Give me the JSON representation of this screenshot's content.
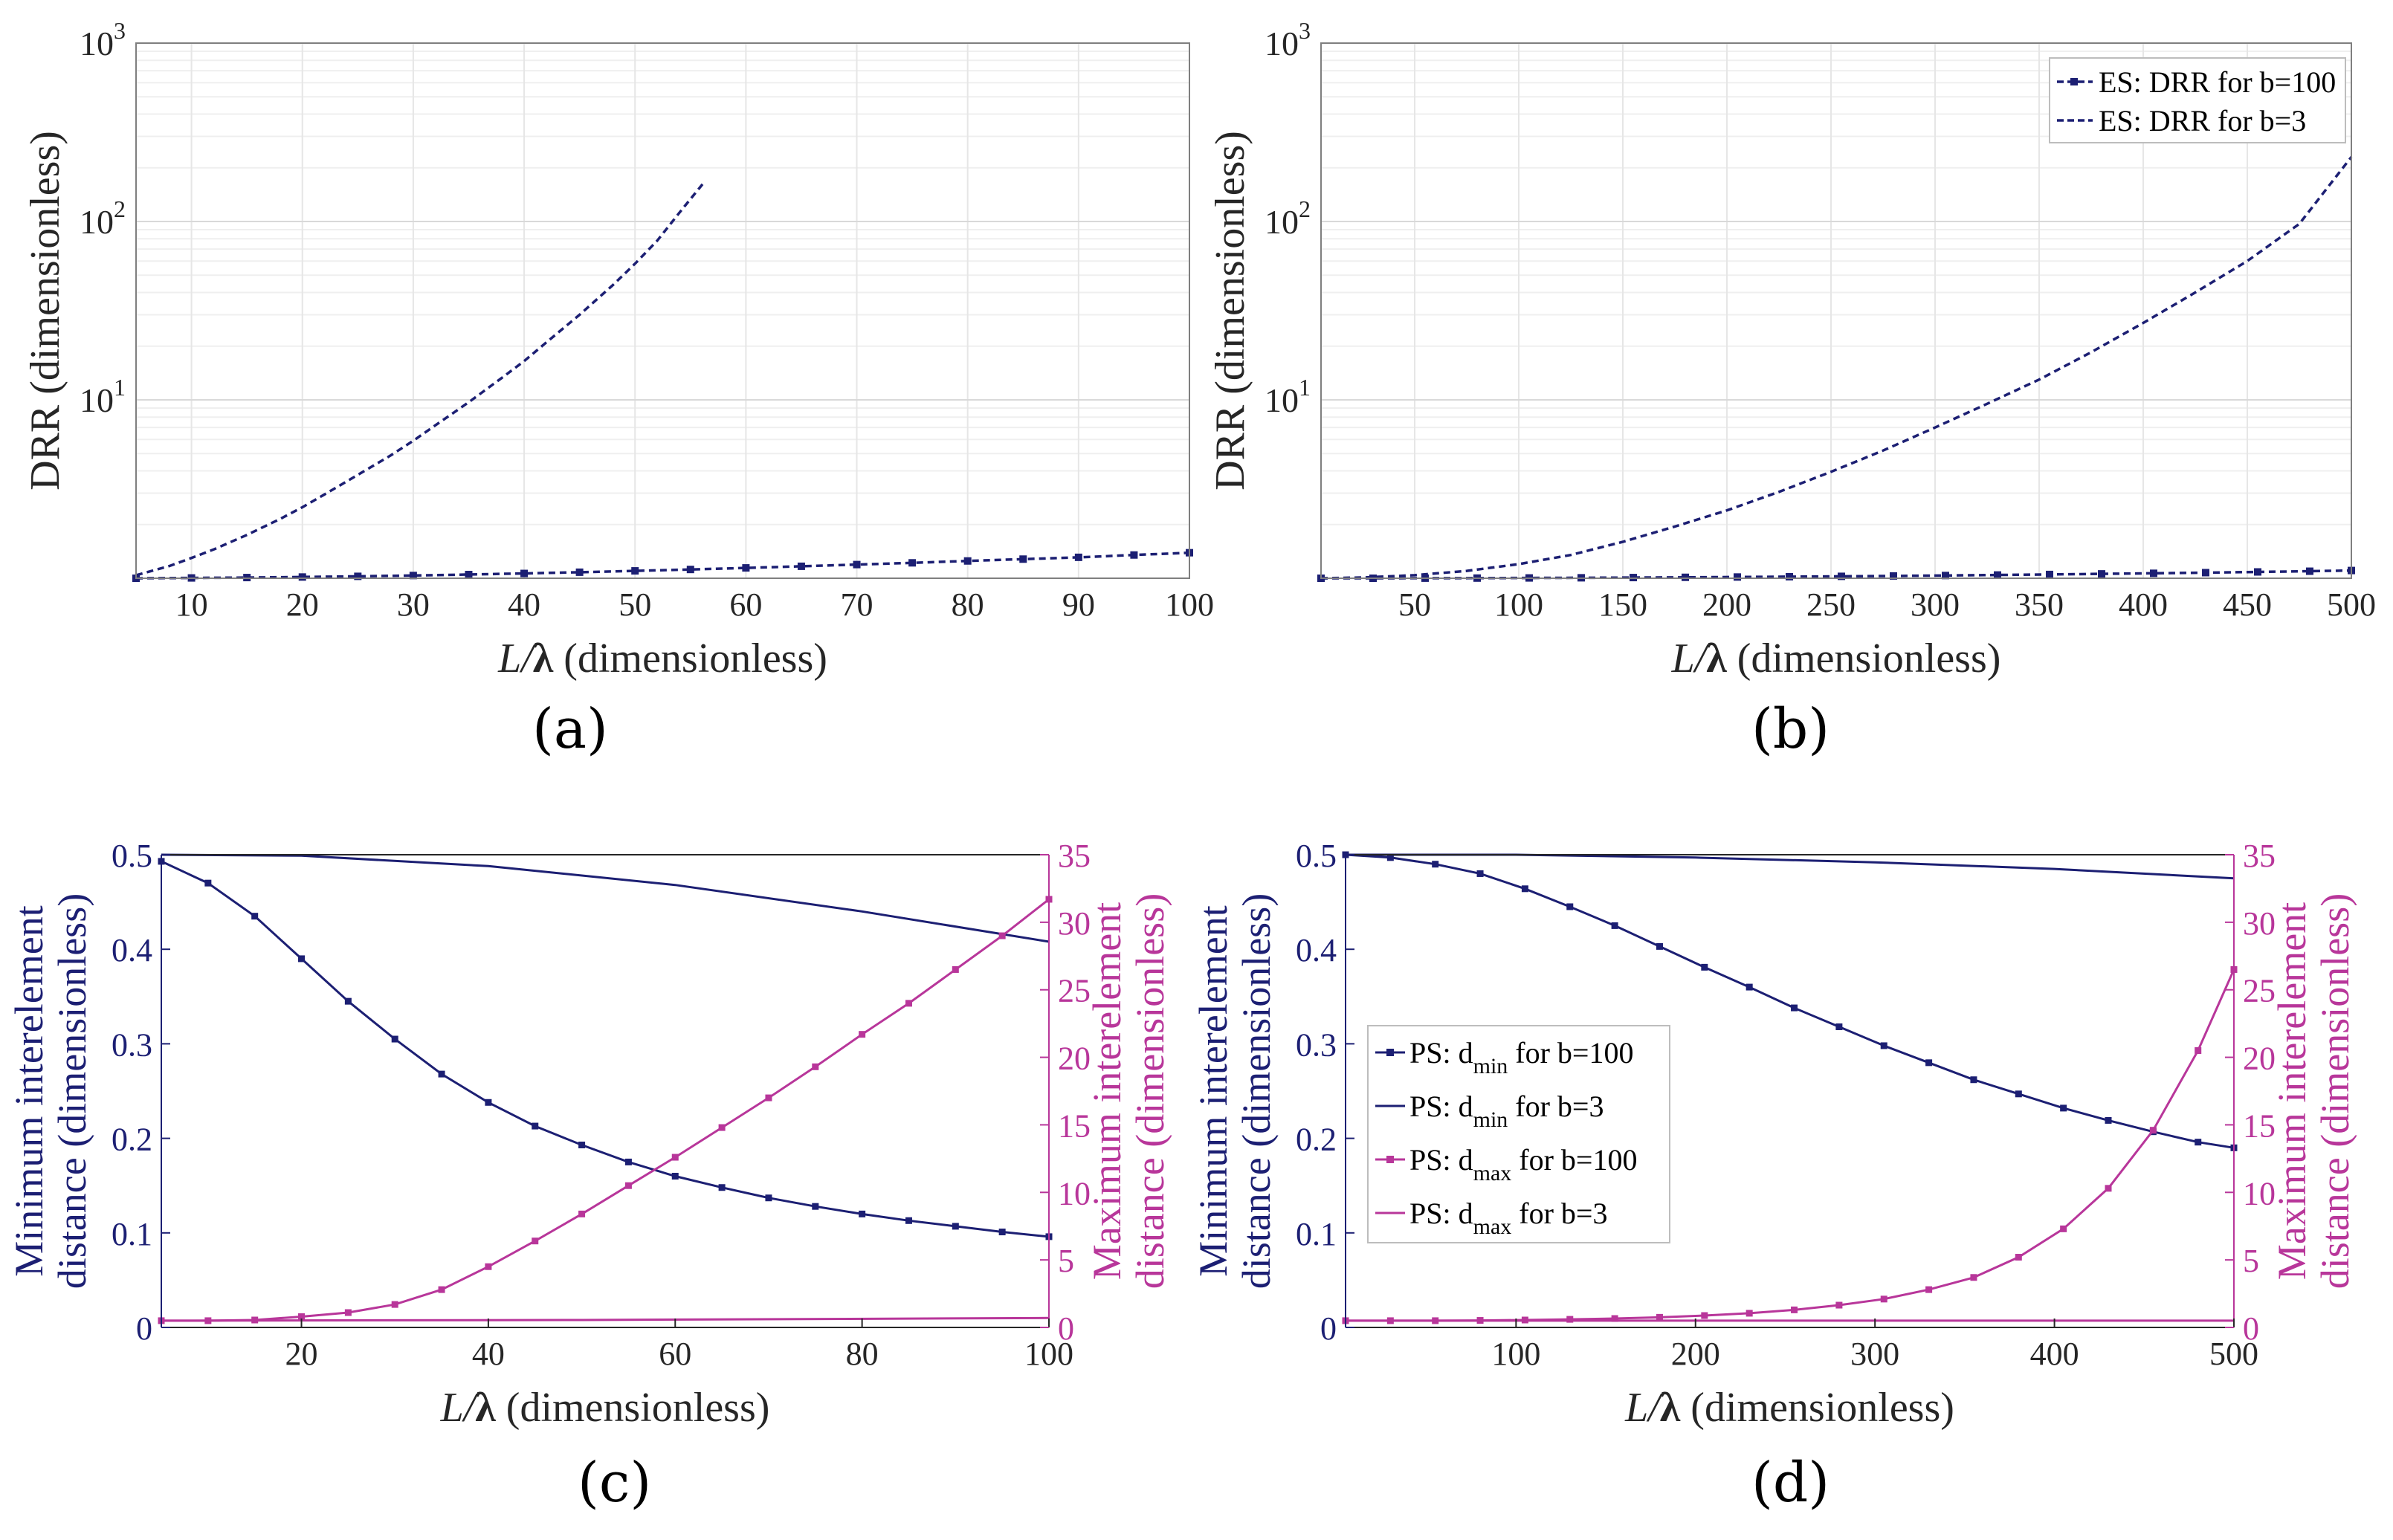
{
  "colors": {
    "navy": "#1c1f73",
    "magenta": "#b8369a",
    "grid": "#e6e6e6",
    "axis": "#7f7f7f",
    "text": "#262626"
  },
  "panel_labels": {
    "a": "(a)",
    "b": "(b)",
    "c": "(c)",
    "d": "(d)"
  },
  "chart_data": [
    {
      "id": "a",
      "type": "line",
      "yscale": "log",
      "xlabel_main": "L/λ",
      "xlabel_suffix": " (dimensionless)",
      "ylabel": "DRR (dimensionless)",
      "xlim": [
        5,
        100
      ],
      "ylim": [
        1,
        1000
      ],
      "xticks": [
        10,
        20,
        30,
        40,
        50,
        60,
        70,
        80,
        90,
        100
      ],
      "yticks": [
        {
          "v": 10,
          "base": "10",
          "exp": "1"
        },
        {
          "v": 100,
          "base": "10",
          "exp": "2"
        },
        {
          "v": 1000,
          "base": "10",
          "exp": "3"
        }
      ],
      "legend": null,
      "series": [
        {
          "name": "ES: DRR for b=100",
          "style": "dashed",
          "markers": true,
          "x": [
            5,
            10,
            15,
            20,
            25,
            30,
            35,
            40,
            45,
            50,
            55,
            60,
            65,
            70,
            75,
            80,
            85,
            90,
            95,
            100
          ],
          "y": [
            1.0,
            1.004,
            1.009,
            1.016,
            1.025,
            1.036,
            1.049,
            1.064,
            1.081,
            1.1,
            1.12,
            1.143,
            1.167,
            1.193,
            1.22,
            1.25,
            1.28,
            1.31,
            1.35,
            1.39
          ]
        },
        {
          "name": "ES: DRR for b=3",
          "style": "dashed",
          "markers": false,
          "x": [
            5,
            8,
            10,
            12,
            15,
            18,
            20,
            22,
            25,
            28,
            30,
            32,
            35,
            38,
            40,
            42,
            45,
            48,
            50,
            52,
            54,
            56.2
          ],
          "y": [
            1.04,
            1.17,
            1.3,
            1.45,
            1.75,
            2.15,
            2.5,
            2.95,
            3.8,
            4.9,
            5.9,
            7.2,
            9.7,
            13.3,
            16.5,
            21.0,
            30.0,
            44.0,
            58.0,
            78.0,
            112.0,
            165.0
          ]
        }
      ]
    },
    {
      "id": "b",
      "type": "line",
      "yscale": "log",
      "xlabel_main": "L/λ",
      "xlabel_suffix": " (dimensionless)",
      "ylabel": "DRR (dimensionless)",
      "xlim": [
        5,
        500
      ],
      "ylim": [
        1,
        1000
      ],
      "xticks": [
        50,
        100,
        150,
        200,
        250,
        300,
        350,
        400,
        450,
        500
      ],
      "yticks": [
        {
          "v": 10,
          "base": "10",
          "exp": "1"
        },
        {
          "v": 100,
          "base": "10",
          "exp": "2"
        },
        {
          "v": 1000,
          "base": "10",
          "exp": "3"
        }
      ],
      "legend": "top-right",
      "series": [
        {
          "name": "ES: DRR for b=100",
          "style": "dashed",
          "markers": true,
          "x": [
            5,
            30,
            55,
            80,
            105,
            130,
            155,
            180,
            205,
            230,
            255,
            280,
            305,
            330,
            355,
            380,
            405,
            430,
            455,
            480,
            500
          ],
          "y": [
            1.0,
            1.0,
            1.001,
            1.002,
            1.004,
            1.006,
            1.009,
            1.012,
            1.016,
            1.02,
            1.025,
            1.03,
            1.036,
            1.043,
            1.05,
            1.058,
            1.066,
            1.075,
            1.085,
            1.095,
            1.105
          ]
        },
        {
          "name": "ES: DRR for b=3",
          "style": "dashed",
          "markers": false,
          "x": [
            5,
            25,
            50,
            75,
            100,
            125,
            150,
            175,
            200,
            225,
            250,
            275,
            300,
            325,
            350,
            375,
            400,
            425,
            450,
            475,
            500
          ],
          "y": [
            1.0,
            1.01,
            1.04,
            1.1,
            1.2,
            1.35,
            1.6,
            1.95,
            2.4,
            3.05,
            3.95,
            5.2,
            7.0,
            9.5,
            13.0,
            18.5,
            27.0,
            40.0,
            60.0,
            97.0,
            230.0
          ]
        }
      ]
    },
    {
      "id": "c",
      "type": "line",
      "yscale": "linear",
      "dual_axis": true,
      "xlabel_main": "L/λ",
      "xlabel_suffix": " (dimensionless)",
      "ylabel_left": [
        "Minimum interelement",
        "distance (dimensionless)"
      ],
      "ylabel_right": [
        "Maximum interelement",
        "distance  (dimensionless)"
      ],
      "xlim": [
        5,
        100
      ],
      "ylim_left": [
        0,
        0.5
      ],
      "ylim_right": [
        0,
        35
      ],
      "xticks": [
        20,
        40,
        60,
        80,
        100
      ],
      "yticks_left": [
        "0",
        "0.1",
        "0.2",
        "0.3",
        "0.4",
        "0.5"
      ],
      "yticks_right": [
        "0",
        "5",
        "10",
        "15",
        "20",
        "25",
        "30",
        "35"
      ],
      "legend": null,
      "series": [
        {
          "name": "PS: d_min for b=100",
          "axis": "left",
          "color": "navy",
          "markers": true,
          "x": [
            5,
            10,
            15,
            20,
            25,
            30,
            35,
            40,
            45,
            50,
            55,
            60,
            65,
            70,
            75,
            80,
            85,
            90,
            95,
            100
          ],
          "y": [
            0.493,
            0.47,
            0.435,
            0.39,
            0.345,
            0.305,
            0.268,
            0.238,
            0.213,
            0.193,
            0.175,
            0.16,
            0.148,
            0.137,
            0.128,
            0.12,
            0.113,
            0.107,
            0.101,
            0.096
          ]
        },
        {
          "name": "PS: d_min for b=3",
          "axis": "left",
          "color": "navy",
          "markers": false,
          "x": [
            5,
            20,
            40,
            60,
            80,
            100
          ],
          "y": [
            0.5,
            0.499,
            0.488,
            0.468,
            0.44,
            0.408
          ]
        },
        {
          "name": "PS: d_max for b=100",
          "axis": "right",
          "color": "magenta",
          "markers": true,
          "x": [
            5,
            10,
            15,
            20,
            25,
            30,
            35,
            40,
            45,
            50,
            55,
            60,
            65,
            70,
            75,
            80,
            85,
            90,
            95,
            100
          ],
          "y": [
            0.5,
            0.5,
            0.55,
            0.8,
            1.1,
            1.7,
            2.8,
            4.5,
            6.4,
            8.4,
            10.5,
            12.6,
            14.8,
            17.0,
            19.3,
            21.7,
            24.0,
            26.5,
            29.0,
            31.7
          ]
        },
        {
          "name": "PS: d_max for b=3",
          "axis": "right",
          "color": "magenta",
          "markers": false,
          "x": [
            5,
            50,
            100
          ],
          "y": [
            0.5,
            0.55,
            0.7
          ]
        }
      ]
    },
    {
      "id": "d",
      "type": "line",
      "yscale": "linear",
      "dual_axis": true,
      "xlabel_main": "L/λ",
      "xlabel_suffix": " (dimensionless)",
      "ylabel_left": [
        "Minimum interelement",
        "distance (dimensionless)"
      ],
      "ylabel_right": [
        "Maximum interelement",
        "distance  (dimensionless)"
      ],
      "xlim": [
        5,
        500
      ],
      "ylim_left": [
        0,
        0.5
      ],
      "ylim_right": [
        0,
        35
      ],
      "xticks": [
        100,
        200,
        300,
        400,
        500
      ],
      "yticks_left": [
        "0",
        "0.1",
        "0.2",
        "0.3",
        "0.4",
        "0.5"
      ],
      "yticks_right": [
        "0",
        "5",
        "10",
        "15",
        "20",
        "25",
        "30",
        "35"
      ],
      "legend": "middle-left",
      "series": [
        {
          "name": "PS: d_min for b=100",
          "legend_prefix": "PS: d",
          "legend_sub": "min",
          "legend_suffix": "  for b=100",
          "axis": "left",
          "color": "navy",
          "markers": true,
          "x": [
            5,
            30,
            55,
            80,
            105,
            130,
            155,
            180,
            205,
            230,
            255,
            280,
            305,
            330,
            355,
            380,
            405,
            430,
            455,
            480,
            500
          ],
          "y": [
            0.5,
            0.497,
            0.49,
            0.48,
            0.464,
            0.445,
            0.425,
            0.403,
            0.381,
            0.36,
            0.338,
            0.318,
            0.298,
            0.28,
            0.262,
            0.247,
            0.232,
            0.219,
            0.207,
            0.196,
            0.19
          ]
        },
        {
          "name": "PS: d_min for b=3",
          "legend_prefix": "PS: d",
          "legend_sub": "min",
          "legend_suffix": "  for b=3",
          "axis": "left",
          "color": "navy",
          "markers": false,
          "x": [
            5,
            100,
            200,
            300,
            400,
            500
          ],
          "y": [
            0.5,
            0.5,
            0.497,
            0.492,
            0.485,
            0.475
          ]
        },
        {
          "name": "PS: d_max for b=100",
          "legend_prefix": "PS: d",
          "legend_sub": "max",
          "legend_suffix": "  for b=100",
          "axis": "right",
          "color": "magenta",
          "markers": true,
          "x": [
            5,
            30,
            55,
            80,
            105,
            130,
            155,
            180,
            205,
            230,
            255,
            280,
            305,
            330,
            355,
            380,
            405,
            430,
            455,
            480,
            500
          ],
          "y": [
            0.5,
            0.5,
            0.5,
            0.52,
            0.55,
            0.6,
            0.66,
            0.75,
            0.88,
            1.05,
            1.3,
            1.65,
            2.1,
            2.8,
            3.7,
            5.2,
            7.3,
            10.3,
            14.6,
            20.5,
            26.5
          ]
        },
        {
          "name": "PS: d_max for b=3",
          "legend_prefix": "PS: d",
          "legend_sub": "max",
          "legend_suffix": "  for b=3",
          "axis": "right",
          "color": "magenta",
          "markers": false,
          "x": [
            5,
            500
          ],
          "y": [
            0.5,
            0.5
          ]
        }
      ]
    }
  ]
}
